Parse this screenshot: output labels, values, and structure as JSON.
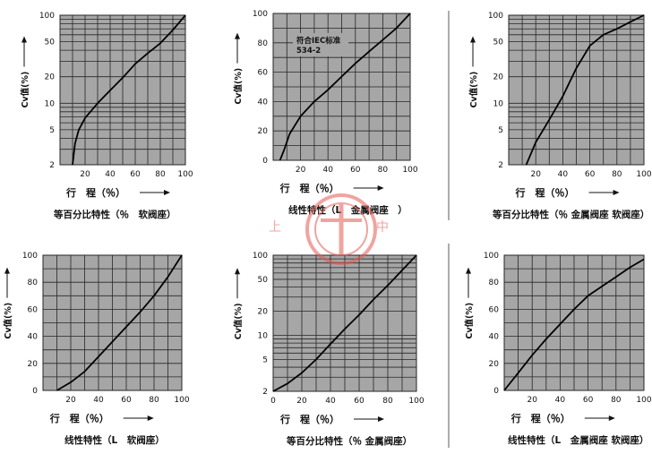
{
  "colors": {
    "plot_background": "#a6a6a6",
    "grid": "#262626",
    "curve": "#000000",
    "watermark": "#e45a52",
    "divider": "#777777"
  },
  "watermark": {
    "chars": [
      "上",
      "中"
    ],
    "description": "red circular company logo watermark"
  },
  "chart_data": [
    {
      "type": "line",
      "yscale": "log",
      "ylim": [
        2,
        100
      ],
      "xlim": [
        0,
        100
      ],
      "yticks": [
        "100",
        "50",
        "20",
        "10",
        "5",
        "2"
      ],
      "xticks": [
        "20",
        "40",
        "60",
        "80",
        "100"
      ],
      "ylabel": "Cv值(%)",
      "xlabel": "行　程（％）",
      "caption": "等百分比特性（％　软阀座）",
      "x": [
        10,
        12,
        15,
        20,
        30,
        40,
        50,
        60,
        70,
        80,
        90,
        100
      ],
      "y": [
        2,
        3.5,
        5,
        6.8,
        10,
        14,
        19.5,
        28,
        37,
        48,
        68,
        100
      ]
    },
    {
      "type": "line",
      "yscale": "linear",
      "ylim": [
        0,
        100
      ],
      "xlim": [
        0,
        100
      ],
      "yticks": [
        "100",
        "80",
        "60",
        "40",
        "20",
        "0"
      ],
      "xticks": [
        "20",
        "40",
        "60",
        "80",
        "100"
      ],
      "ylabel": "Cv值(%)",
      "xlabel": "行　程（％）",
      "caption": "线性特性（L　金属阀座　）",
      "annotation": [
        "符合IEC标准",
        "534-2"
      ],
      "x": [
        5,
        8,
        12,
        20,
        30,
        40,
        50,
        60,
        70,
        80,
        90,
        100
      ],
      "y": [
        0,
        7,
        18,
        30,
        40,
        48,
        57,
        66,
        74,
        82,
        90,
        100
      ]
    },
    {
      "type": "line",
      "yscale": "log",
      "ylim": [
        2,
        100
      ],
      "xlim": [
        0,
        100
      ],
      "yticks": [
        "100",
        "50",
        "20",
        "10",
        "5",
        "2"
      ],
      "xticks": [
        "20",
        "40",
        "60",
        "80",
        "100"
      ],
      "ylabel": "Cv值(%)",
      "xlabel": "行　程（％）",
      "caption": "等百分比特性（％ 金属阀座 软阀座）",
      "x": [
        13,
        20,
        30,
        40,
        50,
        60,
        70,
        80,
        90,
        100
      ],
      "y": [
        2,
        3.6,
        6.5,
        12,
        25,
        45,
        60,
        70,
        84,
        100
      ]
    },
    {
      "type": "line",
      "yscale": "linear",
      "ylim": [
        0,
        100
      ],
      "xlim": [
        0,
        100
      ],
      "yticks": [
        "100",
        "80",
        "60",
        "40",
        "20",
        "0"
      ],
      "xticks": [
        "20",
        "40",
        "60",
        "80",
        "100"
      ],
      "ylabel": "Cv值(%)",
      "xlabel": "行　程（％）",
      "caption": "线性特性（L　软阀座）",
      "x": [
        10,
        20,
        30,
        40,
        50,
        60,
        70,
        80,
        90,
        100
      ],
      "y": [
        0,
        6,
        14,
        25,
        36,
        47,
        58,
        70,
        84,
        100
      ]
    },
    {
      "type": "line",
      "yscale": "log",
      "ylim": [
        2,
        100
      ],
      "xlim": [
        0,
        100
      ],
      "yticks": [
        "100",
        "50",
        "20",
        "10",
        "5",
        "2"
      ],
      "xticks": [
        "0",
        "20",
        "40",
        "60",
        "80",
        "100"
      ],
      "ylabel": "Cv值(%)",
      "xlabel": "行　程（％）",
      "caption": "等百分比特性（％ 金属阀座）",
      "x": [
        0,
        10,
        20,
        30,
        40,
        50,
        60,
        70,
        80,
        90,
        100
      ],
      "y": [
        2,
        2.5,
        3.4,
        5,
        7.8,
        12,
        18,
        28,
        42,
        65,
        100
      ]
    },
    {
      "type": "line",
      "yscale": "linear",
      "ylim": [
        0,
        100
      ],
      "xlim": [
        0,
        100
      ],
      "yticks": [
        "100",
        "80",
        "60",
        "40",
        "20",
        "0"
      ],
      "xticks": [
        "20",
        "40",
        "60",
        "80",
        "100"
      ],
      "ylabel": "Cv值(%)",
      "xlabel": "行　程（％）",
      "caption": "线性特性（L　金属阀座 软阀座）",
      "x": [
        0,
        10,
        20,
        30,
        40,
        50,
        60,
        70,
        80,
        90,
        100
      ],
      "y": [
        0,
        13,
        26,
        38,
        49,
        60,
        70,
        77,
        84,
        91,
        97
      ]
    }
  ]
}
